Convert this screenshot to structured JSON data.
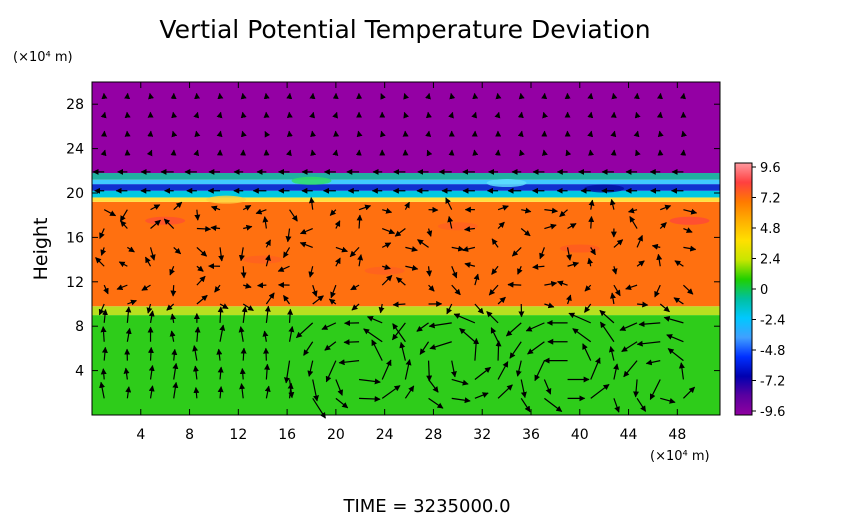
{
  "chart_data": {
    "type": "heatmap",
    "title": "Vertial Potential Temperature Deviation",
    "ylabel": "Height",
    "y_unit_label": "(×10⁴ m)",
    "x_unit_label": "(×10⁴ m)",
    "xlim": [
      0,
      51.5
    ],
    "ylim": [
      0,
      30
    ],
    "x_ticks": [
      4,
      8,
      12,
      16,
      20,
      24,
      28,
      32,
      36,
      40,
      44,
      48
    ],
    "y_ticks": [
      4,
      8,
      12,
      16,
      20,
      24,
      28
    ],
    "footer": "TIME  =  3235000.0",
    "colorbar": {
      "range": [
        -9.6,
        9.6
      ],
      "tick_labels": [
        "9.6",
        "7.2",
        "4.8",
        "2.4",
        "0",
        "-2.4",
        "-4.8",
        "-7.2",
        "-9.6"
      ],
      "stops": [
        "#ff9aa0",
        "#ff4040",
        "#ff7a00",
        "#ffb000",
        "#ffe000",
        "#c8e600",
        "#20d000",
        "#00c0a0",
        "#00c8ff",
        "#40a0ff",
        "#0030ff",
        "#0000b0",
        "#5a00a0",
        "#9000a0"
      ]
    },
    "layers": [
      {
        "from": 0,
        "to": 9,
        "color": "#2ecc1a",
        "value": 0
      },
      {
        "from": 9,
        "to": 9.8,
        "color": "#b8e020",
        "value": 2.4
      },
      {
        "from": 9.8,
        "to": 19.2,
        "color": "#ff7010",
        "value": 6.5
      },
      {
        "from": 19.2,
        "to": 19.6,
        "color": "#ffe040",
        "value": 4.8
      },
      {
        "from": 19.6,
        "to": 20.2,
        "color": "#00c8e0",
        "value": -3.6
      },
      {
        "from": 20.2,
        "to": 20.8,
        "color": "#1030d0",
        "value": -6.5
      },
      {
        "from": 20.8,
        "to": 21.2,
        "color": "#40c8ff",
        "value": -4.0
      },
      {
        "from": 21.2,
        "to": 21.8,
        "color": "#20b0a0",
        "value": -3.0
      },
      {
        "from": 21.8,
        "to": 30,
        "color": "#9400a4",
        "value": -9.6
      }
    ]
  }
}
